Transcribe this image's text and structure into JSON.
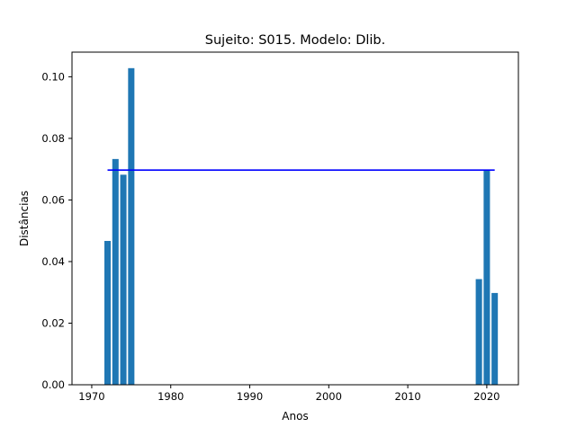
{
  "chart_data": {
    "type": "bar",
    "title": "Sujeito: S015. Modelo: Dlib.",
    "xlabel": "Anos",
    "ylabel": "Distâncias",
    "xlim": [
      1967.5,
      2024
    ],
    "ylim": [
      0,
      0.108
    ],
    "xticks": [
      1970,
      1980,
      1990,
      2000,
      2010,
      2020
    ],
    "xtick_labels": [
      "1970",
      "1980",
      "1990",
      "2000",
      "2010",
      "2020"
    ],
    "yticks": [
      0,
      0.02,
      0.04,
      0.06,
      0.08,
      0.1
    ],
    "ytick_labels": [
      "0.00",
      "0.02",
      "0.04",
      "0.06",
      "0.08",
      "0.10"
    ],
    "bars": {
      "x": [
        1972,
        1973,
        1974,
        1975,
        2019,
        2020,
        2021
      ],
      "values": [
        0.0467,
        0.0733,
        0.0682,
        0.1028,
        0.0343,
        0.0698,
        0.0298
      ],
      "width": 0.8,
      "color": "#1f77b4"
    },
    "reference_line": {
      "x_start": 1972,
      "x_end": 2021,
      "y": 0.0697,
      "color": "#0000ff"
    },
    "grid": false,
    "legend": "none"
  }
}
